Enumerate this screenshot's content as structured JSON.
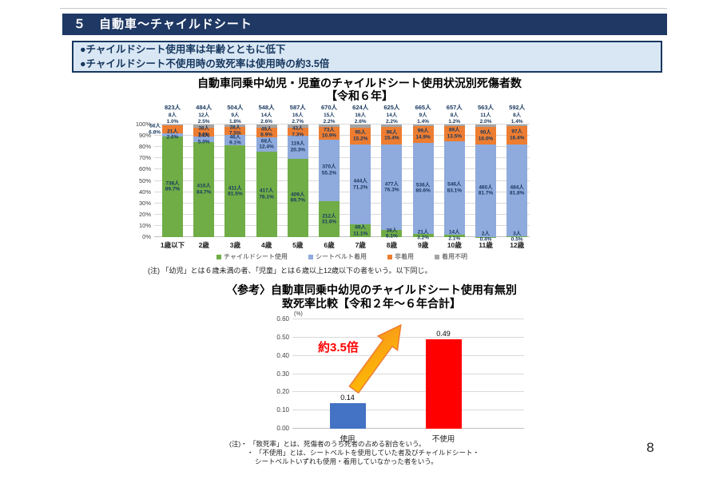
{
  "slide": {
    "title": "５　自動車～チャイルドシート",
    "bullets": [
      "●チャイルドシート使用率は年齢とともに低下",
      "●チャイルドシート不使用時の致死率は使用時の約3.5倍"
    ],
    "page_number": "8"
  },
  "colors": {
    "header_bg": "#1F3864",
    "bullet_box_bg": "#D9E7F5",
    "child_seat_green": "#70AD47",
    "seatbelt_blue": "#8FAADC",
    "no_restraint_orange": "#ED7D31",
    "unknown_gray": "#A5A5A5",
    "use_bar_blue": "#4472C4",
    "nonuse_bar_red": "#FF0000",
    "annotation_red": "#FF0000",
    "arrow_fill": "#FFC000",
    "arrow_stroke": "#ED7D31"
  },
  "chart_data": [
    {
      "type": "stacked_bar_100",
      "title": "自動車同乗中幼児・児童のチャイルドシート使用状況別死傷者数",
      "subtitle": "【令和６年】",
      "unit_suffix": "人",
      "categories": [
        "1歳以下",
        "2歳",
        "3歳",
        "4歳",
        "5歳",
        "6歳",
        "7歳",
        "8歳",
        "9歳",
        "10歳",
        "11歳",
        "12歳"
      ],
      "totals": [
        823,
        484,
        504,
        548,
        587,
        670,
        624,
        625,
        665,
        657,
        563,
        592
      ],
      "y_ticks": [
        "0%",
        "10%",
        "20%",
        "30%",
        "40%",
        "50%",
        "60%",
        "70%",
        "80%",
        "90%",
        "100%"
      ],
      "ylim": [
        0,
        100
      ],
      "grid": true,
      "legend_position": "bottom",
      "series": [
        {
          "name": "チャイルドシート使用",
          "color": "#70AD47",
          "label_position": "inside",
          "values": [
            738,
            410,
            411,
            417,
            409,
            212,
            69,
            38,
            21,
            14,
            2,
            3
          ],
          "percents": [
            "89.7%",
            "84.7%",
            "81.5%",
            "76.1%",
            "69.7%",
            "31.6%",
            "11.1%",
            "6.1%",
            "3.2%",
            "2.1%",
            "0.4%",
            "0.5%"
          ]
        },
        {
          "name": "シートベルト着用",
          "color": "#8FAADC",
          "label_position": "inside",
          "values": [
            21,
            24,
            46,
            68,
            119,
            370,
            444,
            477,
            536,
            546,
            460,
            484
          ],
          "percents": [
            "2.6%",
            "5.0%",
            "9.1%",
            "12.4%",
            "20.3%",
            "55.2%",
            "71.2%",
            "76.3%",
            "80.6%",
            "83.1%",
            "81.7%",
            "81.8%"
          ]
        },
        {
          "name": "非着用",
          "color": "#ED7D31",
          "label_position": "inside",
          "first_label_outside": true,
          "values": [
            56,
            38,
            38,
            49,
            43,
            73,
            95,
            96,
            99,
            89,
            90,
            97
          ],
          "percents": [
            "6.8%",
            "7.9%",
            "7.5%",
            "8.9%",
            "7.3%",
            "10.9%",
            "15.2%",
            "15.4%",
            "14.9%",
            "13.5%",
            "16.0%",
            "16.4%"
          ]
        },
        {
          "name": "着用不明",
          "color": "#A5A5A5",
          "label_position": "above",
          "values": [
            8,
            12,
            9,
            14,
            16,
            15,
            16,
            14,
            9,
            8,
            11,
            8
          ],
          "percents": [
            "1.0%",
            "2.5%",
            "1.8%",
            "2.6%",
            "2.7%",
            "2.2%",
            "2.6%",
            "2.2%",
            "1.4%",
            "1.2%",
            "2.0%",
            "1.4%"
          ]
        }
      ],
      "note": "(注) 「幼児」とは６歳未満の者、「児童」とは６歳以上12歳以下の者をいう。以下同じ。"
    },
    {
      "type": "bar",
      "title_line1": "〈参考〉自動車同乗中幼児のチャイルドシート使用有無別",
      "title_line2": "致死率比較【令和２年～６年合計】",
      "unit": "(%)",
      "categories": [
        "使用",
        "不使用"
      ],
      "values": [
        0.14,
        0.49
      ],
      "value_labels": [
        "0.14",
        "0.49"
      ],
      "bar_colors": [
        "#4472C4",
        "#FF0000"
      ],
      "ylim": [
        0,
        0.6
      ],
      "ytick_step": 0.1,
      "grid": true,
      "annotation": "約3.5倍",
      "notes": [
        "(注)・ 「致死率」とは、死傷者のうち死者の占める割合をいう。",
        "・ 「不使用」とは、シートベルトを使用していた者及びチャイルドシート・",
        "シートベルトいずれも使用・着用していなかった者をいう。"
      ]
    }
  ]
}
